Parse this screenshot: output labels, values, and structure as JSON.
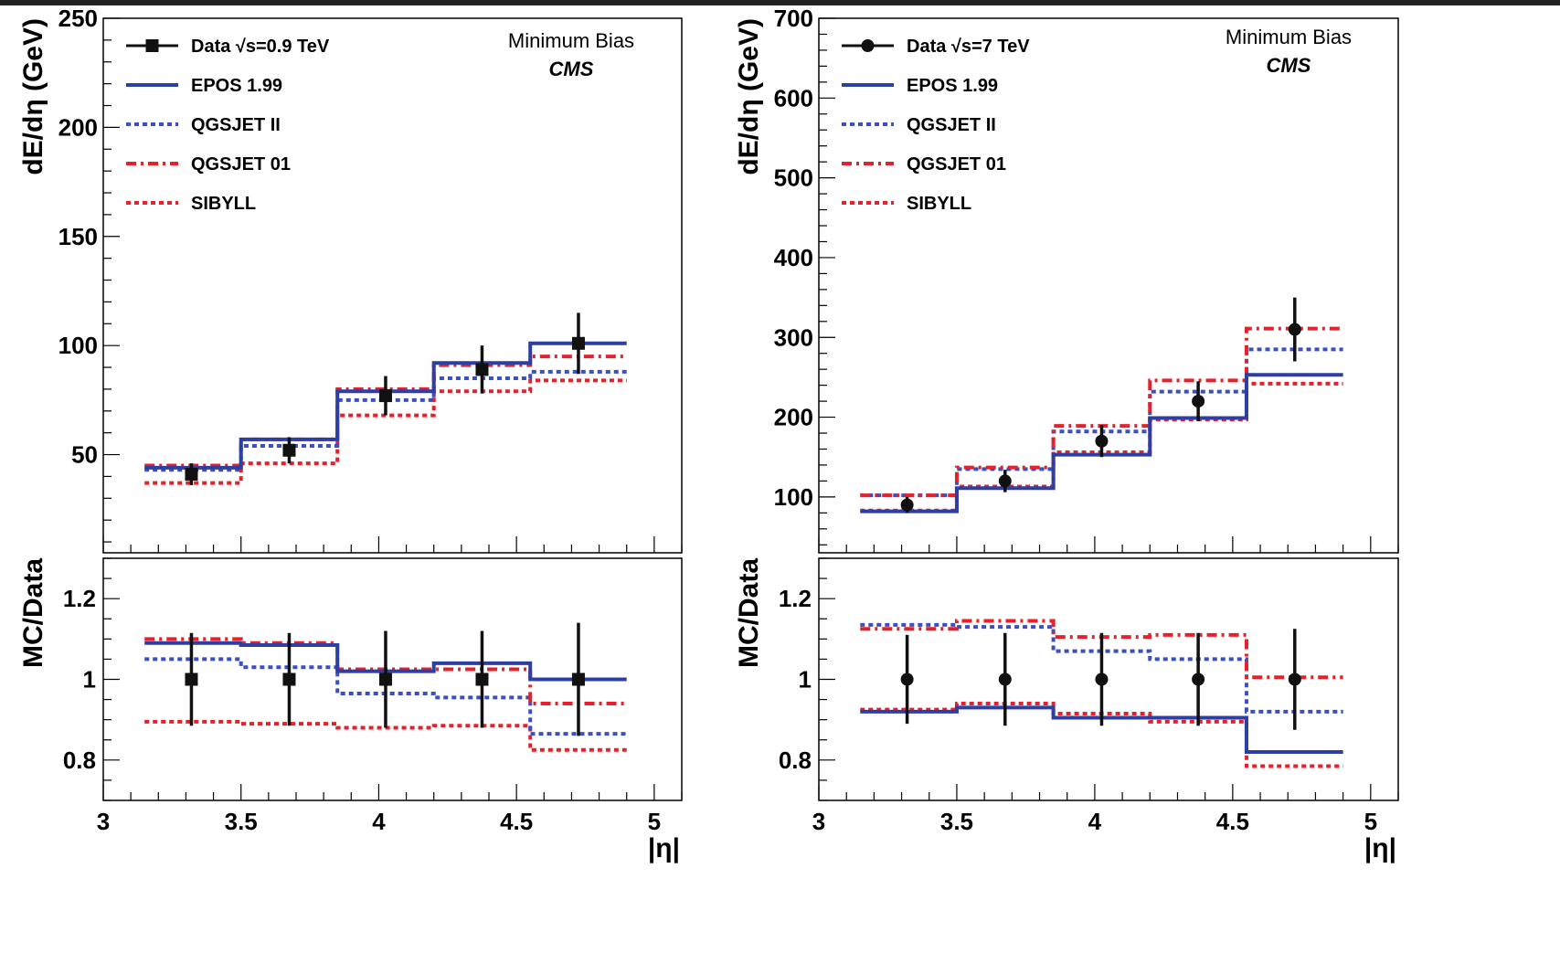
{
  "colors": {
    "epos": "#2e3fa3",
    "qgsjet2": "#3a4fc0",
    "qgsjet01": "#e8202a",
    "sibyll": "#e8202a",
    "data": "#000000"
  },
  "chart_data": [
    {
      "id": "left",
      "type": "line",
      "xlabel": "|η|",
      "ylabel_top": "dE/dη (GeV)",
      "ylabel_bottom": "MC/Data",
      "xlim": [
        3.0,
        5.1
      ],
      "ylim_top": [
        5,
        250
      ],
      "ylim_bottom": [
        0.7,
        1.3
      ],
      "xticks": [
        3,
        3.5,
        4,
        4.5,
        5
      ],
      "xtick_labels": [
        "3",
        "3.5",
        "4",
        "4.5",
        "5"
      ],
      "yticks_top": [
        50,
        100,
        150,
        200,
        250
      ],
      "ytick_labels_top": [
        "50",
        "100",
        "150",
        "200",
        "250"
      ],
      "yticks_bottom": [
        0.8,
        1.0,
        1.2
      ],
      "ytick_labels_bottom": [
        "0.8",
        "1",
        "1.2"
      ],
      "annotation": "Minimum Bias",
      "experiment": "CMS",
      "bin_edges": [
        3.15,
        3.5,
        3.85,
        4.2,
        4.55,
        4.9
      ],
      "data": {
        "label": "Data √s=0.9 TeV",
        "marker": "square",
        "x": [
          3.32,
          3.675,
          4.025,
          4.375,
          4.725
        ],
        "y": [
          41,
          52,
          77,
          89,
          101
        ],
        "err_low": [
          5,
          6,
          9,
          11,
          14
        ],
        "err_high": [
          5,
          6,
          9,
          11,
          14
        ],
        "ratio": [
          1,
          1,
          1,
          1,
          1
        ],
        "ratio_err_low": [
          0.115,
          0.115,
          0.12,
          0.12,
          0.14
        ],
        "ratio_err_high": [
          0.115,
          0.115,
          0.12,
          0.12,
          0.14
        ]
      },
      "series": [
        {
          "name": "EPOS 1.99",
          "style": "solid",
          "values": [
            44,
            57,
            79,
            92,
            101
          ],
          "ratio": [
            1.09,
            1.085,
            1.02,
            1.04,
            1.0
          ]
        },
        {
          "name": "QGSJET II",
          "style": "dotted-blue",
          "values": [
            43,
            54,
            75,
            85,
            88
          ],
          "ratio": [
            1.05,
            1.03,
            0.965,
            0.955,
            0.865
          ]
        },
        {
          "name": "QGSJET 01",
          "style": "dashdot",
          "values": [
            45,
            57,
            80,
            91,
            95
          ],
          "ratio": [
            1.1,
            1.09,
            1.025,
            1.025,
            0.94
          ]
        },
        {
          "name": "SIBYLL",
          "style": "dotted-red",
          "values": [
            37,
            46,
            68,
            79,
            84
          ],
          "ratio": [
            0.895,
            0.89,
            0.88,
            0.885,
            0.825
          ]
        }
      ]
    },
    {
      "id": "right",
      "type": "line",
      "xlabel": "|η|",
      "ylabel_top": "dE/dη (GeV)",
      "ylabel_bottom": "MC/Data",
      "xlim": [
        3.0,
        5.1
      ],
      "ylim_top": [
        30,
        700
      ],
      "ylim_bottom": [
        0.7,
        1.3
      ],
      "xticks": [
        3,
        3.5,
        4,
        4.5,
        5
      ],
      "xtick_labels": [
        "3",
        "3.5",
        "4",
        "4.5",
        "5"
      ],
      "yticks_top": [
        100,
        200,
        300,
        400,
        500,
        600,
        700
      ],
      "ytick_labels_top": [
        "100",
        "200",
        "300",
        "400",
        "500",
        "600",
        "700"
      ],
      "yticks_bottom": [
        0.8,
        1.0,
        1.2
      ],
      "ytick_labels_bottom": [
        "0.8",
        "1",
        "1.2"
      ],
      "annotation": "Minimum Bias",
      "experiment": "CMS",
      "bin_edges": [
        3.15,
        3.5,
        3.85,
        4.2,
        4.55,
        4.9
      ],
      "data": {
        "label": "Data √s=7 TeV",
        "marker": "circle",
        "x": [
          3.32,
          3.675,
          4.025,
          4.375,
          4.725
        ],
        "y": [
          90,
          120,
          170,
          220,
          310
        ],
        "err_low": [
          10,
          14,
          20,
          25,
          40
        ],
        "err_high": [
          10,
          14,
          20,
          25,
          40
        ],
        "ratio": [
          1,
          1,
          1,
          1,
          1
        ],
        "ratio_err_low": [
          0.11,
          0.115,
          0.115,
          0.115,
          0.125
        ],
        "ratio_err_high": [
          0.11,
          0.115,
          0.115,
          0.115,
          0.125
        ]
      },
      "series": [
        {
          "name": "EPOS 1.99",
          "style": "solid",
          "values": [
            82,
            111,
            153,
            199,
            253
          ],
          "ratio": [
            0.92,
            0.93,
            0.905,
            0.905,
            0.82
          ]
        },
        {
          "name": "QGSJET II",
          "style": "dotted-blue",
          "values": [
            102,
            135,
            182,
            232,
            285
          ],
          "ratio": [
            1.135,
            1.13,
            1.07,
            1.05,
            0.92
          ]
        },
        {
          "name": "QGSJET 01",
          "style": "dashdot",
          "values": [
            102,
            137,
            189,
            246,
            311
          ],
          "ratio": [
            1.125,
            1.145,
            1.105,
            1.11,
            1.005
          ]
        },
        {
          "name": "SIBYLL",
          "style": "dotted-red",
          "values": [
            83,
            113,
            156,
            197,
            242
          ],
          "ratio": [
            0.925,
            0.94,
            0.915,
            0.895,
            0.785
          ]
        }
      ]
    }
  ]
}
